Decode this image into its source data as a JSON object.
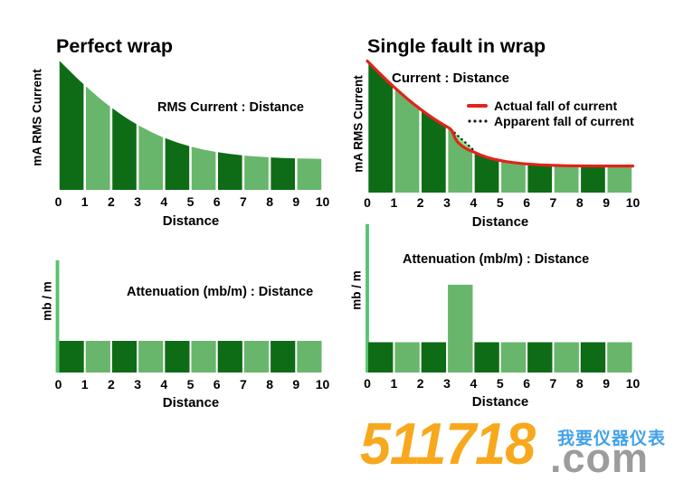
{
  "background": "#FFFFFF",
  "colors": {
    "bar_dark": "#0F6C16",
    "bar_light": "#67B66B",
    "axis_spike": "#58C26F",
    "fault_gap_fill": "#83E983",
    "actual_line": "#E2231A",
    "apparent_dots": "#151515",
    "text": "#000000",
    "wm_orange": "#F8A81D",
    "wm_gray": "#9C9C9C",
    "wm_blue": "#42A1E8"
  },
  "chart_data": [
    {
      "id": "rms-current-perfect-wrap",
      "type": "bar",
      "title": "Perfect wrap",
      "annotation": "RMS Current : Distance",
      "ylabel": "mA RMS Current",
      "xlabel": "Distance",
      "x_ticks": [
        "0",
        "1",
        "2",
        "3",
        "4",
        "5",
        "6",
        "7",
        "8",
        "9",
        "10"
      ],
      "x_range": [
        0,
        10
      ],
      "grid": false,
      "bar_style": "contiguous bars between integer distances, tops follow decay curve, colors alternate dark/light green",
      "bar_values_at_ticks": [
        1.0,
        0.8,
        0.63,
        0.5,
        0.4,
        0.33,
        0.29,
        0.26,
        0.25,
        0.24,
        0.24
      ],
      "curve": {
        "x": [
          0,
          0.25,
          0.5,
          0.75,
          1,
          1.25,
          1.5,
          1.75,
          2,
          2.25,
          2.5,
          2.75,
          3,
          3.25,
          3.5,
          3.75,
          4,
          4.5,
          5,
          5.5,
          6,
          6.5,
          7,
          7.5,
          8,
          8.5,
          9,
          9.5,
          10
        ],
        "v": [
          1.0,
          0.949,
          0.899,
          0.85,
          0.803,
          0.758,
          0.714,
          0.673,
          0.634,
          0.597,
          0.562,
          0.53,
          0.5,
          0.472,
          0.446,
          0.422,
          0.401,
          0.364,
          0.333,
          0.309,
          0.29,
          0.276,
          0.264,
          0.256,
          0.25,
          0.245,
          0.242,
          0.24,
          0.238
        ]
      }
    },
    {
      "id": "current-single-fault-in-wrap",
      "type": "bar",
      "title": "Single fault in wrap",
      "annotation": "Current : Distance",
      "ylabel": "mA RMS Current",
      "xlabel": "Distance",
      "x_ticks": [
        "0",
        "1",
        "2",
        "3",
        "4",
        "5",
        "6",
        "7",
        "8",
        "9",
        "10"
      ],
      "x_range": [
        0,
        10
      ],
      "grid": false,
      "legend": [
        {
          "label": "Actual fall of current",
          "marker": "solid-red-line"
        },
        {
          "label": "Apparent fall of current",
          "marker": "dotted-black-line"
        }
      ],
      "fault_location": [
        3.15,
        4.0
      ],
      "bar_values_at_ticks": [
        1.0,
        0.8,
        0.63,
        0.5,
        0.31,
        0.24,
        0.22,
        0.21,
        0.2,
        0.2,
        0.2
      ],
      "actual_curve": {
        "x": [
          0,
          0.25,
          0.5,
          0.75,
          1,
          1.25,
          1.5,
          1.75,
          2,
          2.25,
          2.5,
          2.75,
          3,
          3.1,
          3.2,
          3.3,
          3.4,
          3.5,
          3.6,
          3.7,
          3.8,
          3.9,
          4,
          4.25,
          4.5,
          4.75,
          5,
          5.25,
          5.5,
          5.75,
          6,
          6.5,
          7,
          7.5,
          8,
          8.5,
          9,
          9.5,
          10
        ],
        "v": [
          1.0,
          0.949,
          0.899,
          0.85,
          0.803,
          0.758,
          0.714,
          0.673,
          0.634,
          0.597,
          0.562,
          0.53,
          0.5,
          0.488,
          0.468,
          0.415,
          0.385,
          0.366,
          0.35,
          0.337,
          0.327,
          0.317,
          0.309,
          0.287,
          0.269,
          0.255,
          0.244,
          0.235,
          0.228,
          0.222,
          0.218,
          0.211,
          0.207,
          0.204,
          0.203,
          0.202,
          0.202,
          0.202,
          0.202
        ]
      },
      "apparent_curve": {
        "x": [
          3.15,
          3.3,
          3.45,
          3.6,
          3.75,
          3.9,
          4.0
        ],
        "v": [
          0.478,
          0.452,
          0.425,
          0.398,
          0.37,
          0.342,
          0.322
        ]
      }
    },
    {
      "id": "attenuation-perfect-wrap",
      "type": "bar",
      "title": "",
      "annotation": "Attenuation (mb/m) : Distance",
      "ylabel": "mb / m",
      "xlabel": "Distance",
      "x_ticks": [
        "0",
        "1",
        "2",
        "3",
        "4",
        "5",
        "6",
        "7",
        "8",
        "9",
        "10"
      ],
      "x_range": [
        0,
        10
      ],
      "grid": false,
      "values": [
        1,
        1,
        1,
        1,
        1,
        1,
        1,
        1,
        1,
        1
      ],
      "y_axis_spike_units": 3.55
    },
    {
      "id": "attenuation-single-fault",
      "type": "bar",
      "title": "",
      "annotation": "Attenuation (mb/m) : Distance",
      "ylabel": "mb / m",
      "xlabel": "Distance",
      "x_ticks": [
        "0",
        "1",
        "2",
        "3",
        "4",
        "5",
        "6",
        "7",
        "8",
        "9",
        "10"
      ],
      "x_range": [
        0,
        10
      ],
      "grid": false,
      "values": [
        1,
        1,
        1,
        2.9,
        1,
        1,
        1,
        1,
        1,
        1
      ],
      "y_axis_spike_units": 4.9
    }
  ],
  "watermark": {
    "number": "511718",
    "suffix": ".com",
    "tagline": "我要仪器仪表"
  }
}
